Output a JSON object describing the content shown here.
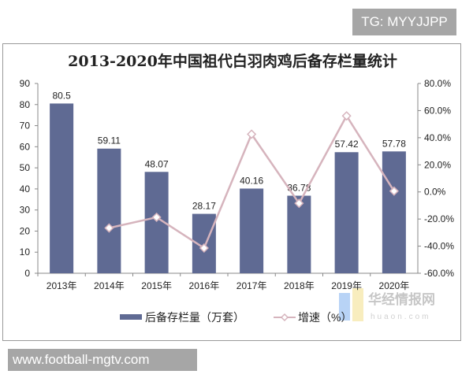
{
  "watermark_top": "TG: MYYJJPP",
  "watermark_bottom": "www.football-mgtv.com",
  "logo": {
    "cn": "华经情报网",
    "en": "huaon.com"
  },
  "colors": {
    "bar": "#5f6a93",
    "line": "#d6b4bd"
  },
  "chart_data": {
    "type": "bar",
    "title": "2013-2020年中国祖代白羽肉鸡后备存栏量统计",
    "categories": [
      "2013年",
      "2014年",
      "2015年",
      "2016年",
      "2017年",
      "2018年",
      "2019年",
      "2020年"
    ],
    "series": [
      {
        "name": "后备存栏量（万套）",
        "type": "bar",
        "axis": "left",
        "values": [
          80.5,
          59.11,
          48.07,
          28.17,
          40.16,
          36.78,
          57.42,
          57.78
        ],
        "labels": [
          "80.5",
          "59.11",
          "48.07",
          "28.17",
          "40.16",
          "36.78",
          "57.42",
          "57.78"
        ]
      },
      {
        "name": "增速（%）",
        "type": "line",
        "axis": "right",
        "values": [
          null,
          -26.6,
          -18.7,
          -41.4,
          42.6,
          -8.4,
          56.1,
          0.6
        ]
      }
    ],
    "y_left": {
      "range": [
        0,
        90
      ],
      "ticks": [
        "0",
        "10",
        "20",
        "30",
        "40",
        "50",
        "60",
        "70",
        "80",
        "90"
      ]
    },
    "y_right": {
      "range": [
        -60,
        80
      ],
      "ticks": [
        "-60.0%",
        "-40.0%",
        "-20.0%",
        "0.0%",
        "20.0%",
        "40.0%",
        "60.0%",
        "80.0%"
      ]
    },
    "grid": false,
    "legend": "bottom"
  }
}
